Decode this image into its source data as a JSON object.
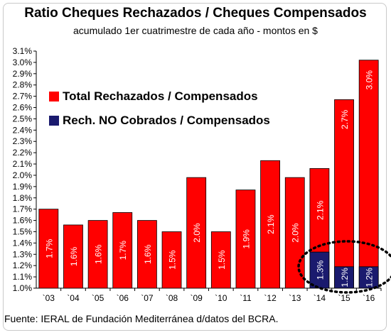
{
  "chart_data": {
    "type": "bar",
    "title": "Ratio Cheques Rechazados / Cheques Compensados",
    "subtitle": "acumulado 1er cuatrimestre de cada año - montos en $",
    "categories": [
      "`03",
      "`04",
      "`05",
      "`06",
      "`07",
      "`08",
      "`09",
      "`10",
      "`11",
      "`12",
      "`13",
      "`14",
      "`15",
      "`16"
    ],
    "series": [
      {
        "name": "Total Rechazados / Compensados",
        "color": "#ff0000",
        "values": [
          1.7,
          1.56,
          1.6,
          1.67,
          1.6,
          1.5,
          1.98,
          1.5,
          1.87,
          2.13,
          1.98,
          2.06,
          2.67,
          3.02
        ],
        "data_labels": [
          "1.7%",
          "1.6%",
          "1.6%",
          "1.7%",
          "1.6%",
          "1.5%",
          "2.0%",
          "1.5%",
          "1.9%",
          "2.1%",
          "2.0%",
          "2.1%",
          "2.7%",
          "3.0%"
        ]
      },
      {
        "name": "Rech. NO Cobrados / Compensados",
        "color": "#1a1a6e",
        "values": [
          null,
          null,
          null,
          null,
          null,
          null,
          null,
          null,
          null,
          null,
          null,
          1.32,
          1.19,
          1.19
        ],
        "data_labels": [
          "",
          "",
          "",
          "",
          "",
          "",
          "",
          "",
          "",
          "",
          "",
          "1.3%",
          "1.2%",
          "1.2%"
        ]
      }
    ],
    "ylim": [
      1.0,
      3.1
    ],
    "yticks": [
      "1.0%",
      "1.1%",
      "1.2%",
      "1.3%",
      "1.4%",
      "1.5%",
      "1.6%",
      "1.7%",
      "1.8%",
      "1.9%",
      "2.0%",
      "2.1%",
      "2.2%",
      "2.3%",
      "2.4%",
      "2.5%",
      "2.6%",
      "2.7%",
      "2.8%",
      "2.9%",
      "3.0%",
      "3.1%"
    ],
    "grid": false,
    "legend_position": "top-left",
    "annotation": "dotted ellipse around 2014-2016"
  },
  "source": "Fuente: IERAL de Fundación Mediterránea d/datos del BCRA."
}
